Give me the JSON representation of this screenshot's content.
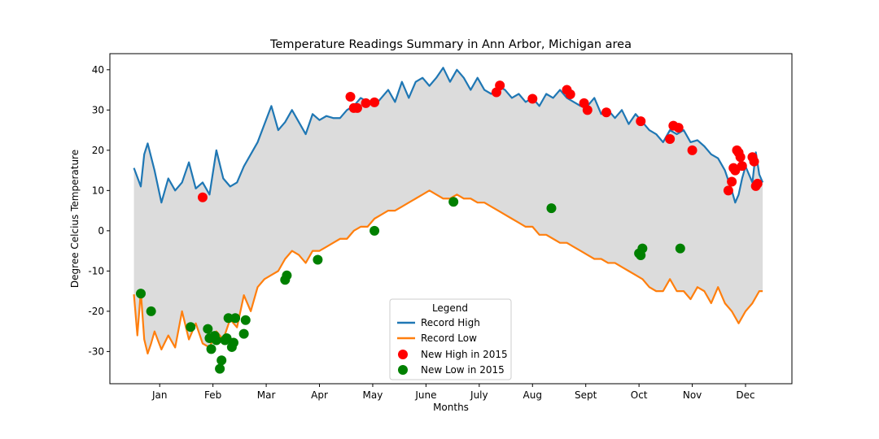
{
  "chart_data": {
    "type": "line",
    "title": "Temperature Readings Summary in Ann Arbor, Michigan area",
    "xlabel": "Months",
    "ylabel": "Degree Celcius Temperature",
    "xlim": [
      -14,
      383
    ],
    "ylim": [
      -38,
      44
    ],
    "y_ticks": [
      -30,
      -20,
      -10,
      0,
      10,
      20,
      30,
      40
    ],
    "x_ticks": [
      {
        "day": 15,
        "label": "Jan"
      },
      {
        "day": 46,
        "label": "Feb"
      },
      {
        "day": 77,
        "label": "Mar"
      },
      {
        "day": 108,
        "label": "Apr"
      },
      {
        "day": 139,
        "label": "May"
      },
      {
        "day": 170,
        "label": "June"
      },
      {
        "day": 201,
        "label": "July"
      },
      {
        "day": 232,
        "label": "Aug"
      },
      {
        "day": 263,
        "label": "Sept"
      },
      {
        "day": 294,
        "label": "Oct"
      },
      {
        "day": 325,
        "label": "Nov"
      },
      {
        "day": 356,
        "label": "Dec"
      }
    ],
    "grid": false,
    "fill_between": {
      "color": "#dcdcdc"
    },
    "legend": {
      "title": "Legend",
      "placement": "lower-center"
    },
    "series": [
      {
        "name": "Record High",
        "kind": "line",
        "color": "#1f77b4",
        "x": [
          0,
          4,
          6,
          8,
          12,
          16,
          20,
          24,
          28,
          32,
          36,
          40,
          44,
          48,
          52,
          56,
          60,
          64,
          68,
          72,
          76,
          80,
          84,
          88,
          92,
          96,
          100,
          104,
          108,
          112,
          116,
          120,
          124,
          128,
          132,
          136,
          140,
          144,
          148,
          152,
          156,
          160,
          164,
          168,
          172,
          176,
          180,
          184,
          188,
          192,
          196,
          200,
          204,
          208,
          212,
          216,
          220,
          224,
          228,
          232,
          236,
          240,
          244,
          248,
          252,
          256,
          260,
          264,
          268,
          272,
          276,
          280,
          284,
          288,
          292,
          296,
          300,
          304,
          308,
          312,
          316,
          320,
          324,
          328,
          332,
          336,
          340,
          344,
          348,
          350,
          352,
          354,
          356,
          358,
          360,
          362,
          364,
          366
        ],
        "values": [
          15.6,
          11,
          19,
          21.7,
          15,
          7,
          13,
          10,
          12,
          17,
          10.5,
          12,
          9,
          20,
          13,
          11,
          12,
          16,
          19,
          22,
          26.5,
          31,
          25,
          27,
          30,
          27,
          24,
          29,
          27.5,
          28.5,
          28,
          28,
          30,
          31,
          33,
          32,
          31,
          33,
          35,
          32,
          37,
          33,
          37,
          38,
          36,
          38,
          40.5,
          37,
          40,
          38,
          35,
          38,
          35,
          34,
          36,
          35,
          33,
          34,
          32,
          33,
          31,
          34,
          33,
          35,
          33,
          32,
          31,
          31,
          33,
          29,
          30,
          28,
          30,
          26.5,
          29,
          27,
          25,
          24,
          22,
          25,
          24,
          25,
          22,
          22.5,
          21,
          19,
          18,
          15,
          10,
          7,
          9,
          13,
          16,
          14,
          12,
          19.5,
          14,
          12
        ]
      },
      {
        "name": "Record Low",
        "kind": "line",
        "color": "#ff7f0e",
        "x": [
          0,
          2,
          4,
          6,
          8,
          10,
          12,
          16,
          20,
          24,
          28,
          32,
          36,
          40,
          44,
          48,
          52,
          56,
          60,
          64,
          68,
          72,
          76,
          80,
          84,
          88,
          92,
          96,
          100,
          104,
          108,
          112,
          116,
          120,
          124,
          128,
          132,
          136,
          140,
          144,
          148,
          152,
          156,
          160,
          164,
          168,
          172,
          176,
          180,
          184,
          188,
          192,
          196,
          200,
          204,
          208,
          212,
          216,
          220,
          224,
          228,
          232,
          236,
          240,
          244,
          248,
          252,
          256,
          260,
          264,
          268,
          272,
          276,
          280,
          284,
          288,
          292,
          296,
          300,
          304,
          308,
          312,
          316,
          320,
          324,
          328,
          332,
          336,
          340,
          344,
          348,
          352,
          356,
          360,
          364,
          366
        ],
        "values": [
          -15.8,
          -26,
          -15,
          -27,
          -30.5,
          -28,
          -25,
          -29.5,
          -26,
          -29,
          -20,
          -27,
          -23,
          -28,
          -29,
          -25,
          -27,
          -22,
          -24,
          -16,
          -20,
          -14,
          -12,
          -11,
          -10,
          -7,
          -5,
          -6,
          -8,
          -5,
          -5,
          -4,
          -3,
          -2,
          -2,
          0,
          1,
          1,
          3,
          4,
          5,
          5,
          6,
          7,
          8,
          9,
          10,
          9,
          8,
          8,
          9,
          8,
          8,
          7,
          7,
          6,
          5,
          4,
          3,
          2,
          1,
          1,
          -1,
          -1,
          -2,
          -3,
          -3,
          -4,
          -5,
          -6,
          -7,
          -7,
          -8,
          -8,
          -9,
          -10,
          -11,
          -12,
          -14,
          -15,
          -15,
          -12,
          -15,
          -15,
          -17,
          -14,
          -15,
          -18,
          -14,
          -18,
          -20,
          -23,
          -20,
          -18,
          -15,
          -15
        ]
      },
      {
        "name": "New High in 2015",
        "kind": "scatter",
        "color": "#ff0000",
        "x": [
          40,
          126,
          128,
          130,
          135,
          140,
          211,
          213,
          232,
          252,
          254,
          262,
          264,
          275,
          295,
          312,
          314,
          317,
          325,
          346,
          348,
          349,
          350,
          351,
          352,
          353,
          354,
          360,
          361,
          362,
          363
        ],
        "values": [
          8.3,
          33.3,
          30.5,
          30.5,
          31.7,
          31.9,
          34.4,
          36.1,
          32.8,
          35,
          33.9,
          31.7,
          30,
          29.4,
          27.2,
          22.8,
          26.1,
          25.6,
          20,
          10,
          12.2,
          15.6,
          15,
          20,
          19.4,
          18.3,
          16.1,
          18.3,
          17.2,
          11.1,
          11.7
        ]
      },
      {
        "name": "New Low in 2015",
        "kind": "scatter",
        "color": "#008000",
        "x": [
          4,
          10,
          33,
          43,
          44,
          45,
          47,
          48,
          50,
          51,
          53,
          54,
          55,
          57,
          58,
          59,
          64,
          65,
          88,
          89,
          107,
          140,
          186,
          243,
          294,
          295,
          296,
          318
        ],
        "values": [
          -15.6,
          -20,
          -23.9,
          -24.4,
          -26.7,
          -29.4,
          -26.1,
          -27.2,
          -34.3,
          -32.2,
          -27.2,
          -26.7,
          -21.7,
          -28.9,
          -27.8,
          -21.7,
          -25.6,
          -22.2,
          -12.2,
          -11.1,
          -7.2,
          0,
          7.2,
          5.6,
          -5.6,
          -6.1,
          -4.4,
          -4.4
        ]
      }
    ]
  }
}
